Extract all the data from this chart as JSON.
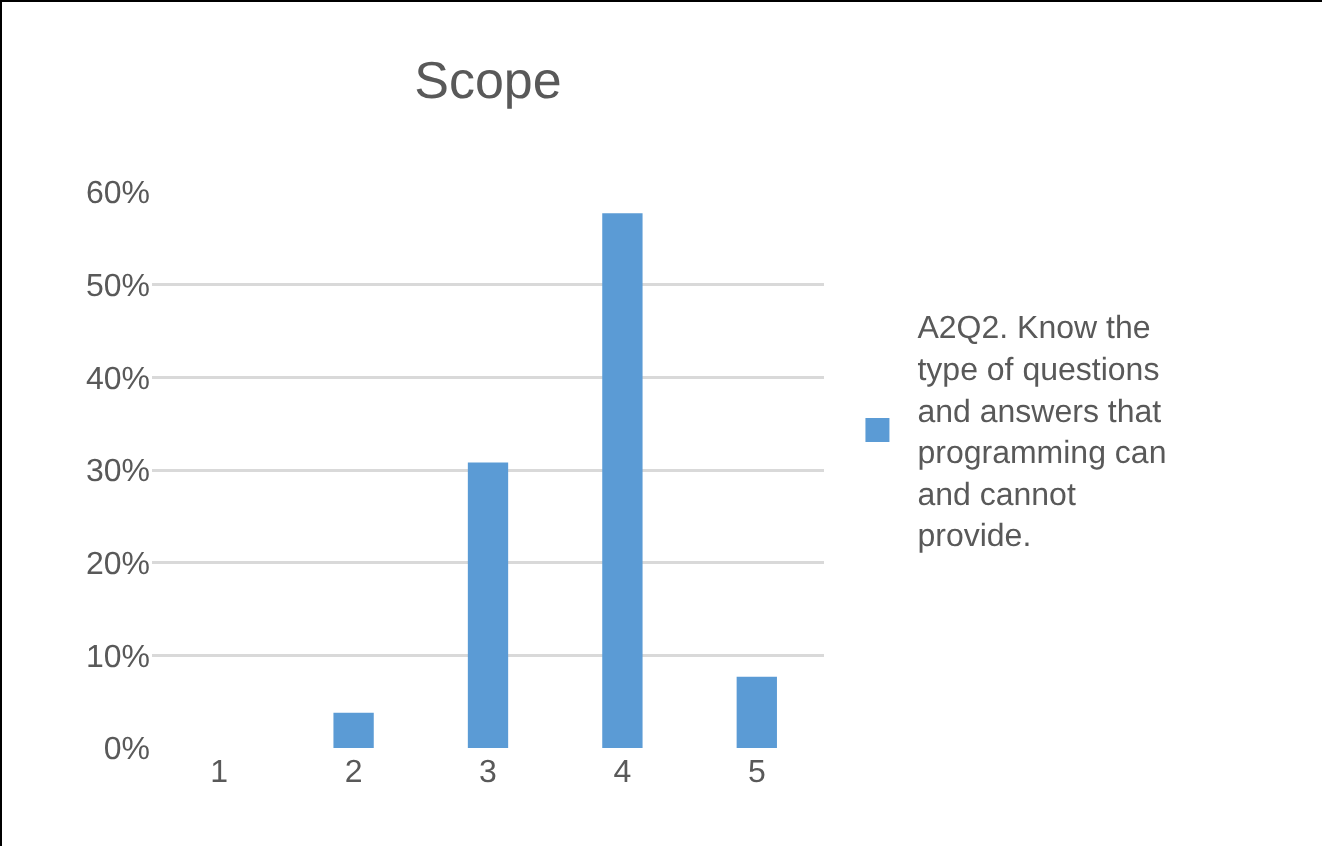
{
  "chart_data": {
    "type": "bar",
    "title": "Scope",
    "categories": [
      "1",
      "2",
      "3",
      "4",
      "5"
    ],
    "series": [
      {
        "name": "A2Q2. Know the type of questions and answers that programming can and cannot provide.",
        "color": "#5b9bd5",
        "values": [
          0,
          3.8,
          30.8,
          57.7,
          7.7
        ]
      }
    ],
    "ylim": [
      0,
      60
    ],
    "yticks": [
      {
        "value": 0,
        "label": "0%"
      },
      {
        "value": 10,
        "label": "10%"
      },
      {
        "value": 20,
        "label": "20%"
      },
      {
        "value": 30,
        "label": "30%"
      },
      {
        "value": 40,
        "label": "40%"
      },
      {
        "value": 50,
        "label": "50%"
      },
      {
        "value": 60,
        "label": "60%"
      }
    ],
    "grid": "y",
    "legend": "right"
  }
}
